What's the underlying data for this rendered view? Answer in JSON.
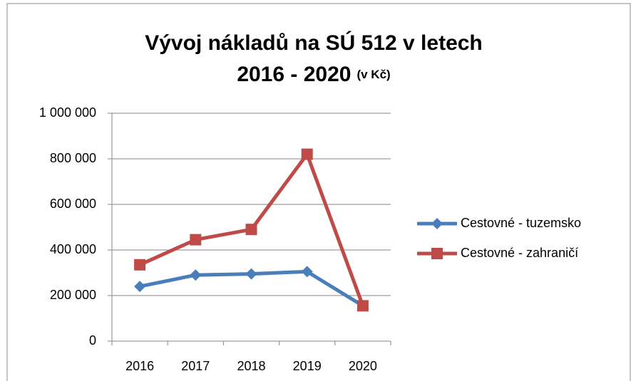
{
  "chart_data": {
    "type": "line",
    "title": [
      "Vývoj nákladů na SÚ 512 v letech",
      "2016 - 2020"
    ],
    "title_note": "(v Kč)",
    "categories": [
      "2016",
      "2017",
      "2018",
      "2019",
      "2020"
    ],
    "series": [
      {
        "name": "Cestovné - tuzemsko",
        "color": "#4a7ebb",
        "marker": "diamond",
        "values": [
          240000,
          290000,
          295000,
          305000,
          155000
        ]
      },
      {
        "name": "Cestovné - zahraničí",
        "color": "#be4b48",
        "marker": "square",
        "values": [
          335000,
          445000,
          490000,
          820000,
          155000
        ]
      }
    ],
    "ylim": [
      0,
      1000000
    ],
    "yticks": [
      0,
      {
        "value": 200000,
        "label": "200 000"
      },
      {
        "value": 400000,
        "label": "400 000"
      },
      {
        "value": 600000,
        "label": "600 000"
      },
      {
        "value": 800000,
        "label": "800 000"
      },
      {
        "value": 1000000,
        "label": "1 000 000"
      }
    ],
    "grid": true,
    "legend": "right"
  }
}
